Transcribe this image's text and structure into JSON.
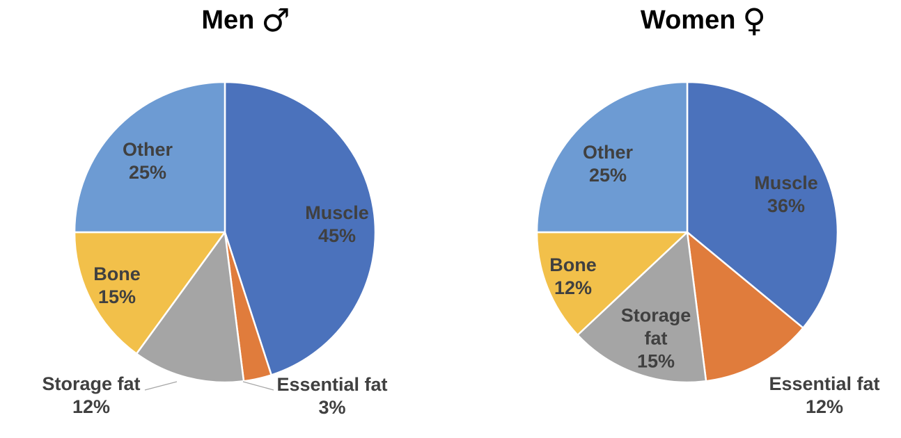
{
  "chart_data": [
    {
      "type": "pie",
      "title": "Men",
      "gender_symbol": "♂",
      "start_angle_deg": 0,
      "direction": "clockwise",
      "slice_border_color": "#FFFFFF",
      "text_color": "#404040",
      "slices": [
        {
          "label": "Muscle",
          "value": 45,
          "pct_label": "45%",
          "color": "#4B72BC",
          "label_placement": "inside"
        },
        {
          "label": "Essential fat",
          "value": 3,
          "pct_label": "3%",
          "color": "#E07C3C",
          "label_placement": "outside"
        },
        {
          "label": "Storage fat",
          "value": 12,
          "pct_label": "12%",
          "color": "#A5A5A5",
          "label_placement": "outside"
        },
        {
          "label": "Bone",
          "value": 15,
          "pct_label": "15%",
          "color": "#F2C04A",
          "label_placement": "inside"
        },
        {
          "label": "Other",
          "value": 25,
          "pct_label": "25%",
          "color": "#6D9BD3",
          "label_placement": "inside"
        }
      ]
    },
    {
      "type": "pie",
      "title": "Women",
      "gender_symbol": "♀",
      "start_angle_deg": 0,
      "direction": "clockwise",
      "slice_border_color": "#FFFFFF",
      "text_color": "#404040",
      "slices": [
        {
          "label": "Muscle",
          "value": 36,
          "pct_label": "36%",
          "color": "#4B72BC",
          "label_placement": "inside"
        },
        {
          "label": "Essential fat",
          "value": 12,
          "pct_label": "12%",
          "color": "#E07C3C",
          "label_placement": "outside"
        },
        {
          "label": "Storage fat",
          "value": 15,
          "pct_label": "15%",
          "color": "#A5A5A5",
          "label_placement": "inside"
        },
        {
          "label": "Bone",
          "value": 12,
          "pct_label": "12%",
          "color": "#F2C04A",
          "label_placement": "inside"
        },
        {
          "label": "Other",
          "value": 25,
          "pct_label": "25%",
          "color": "#6D9BD3",
          "label_placement": "inside"
        }
      ]
    }
  ]
}
